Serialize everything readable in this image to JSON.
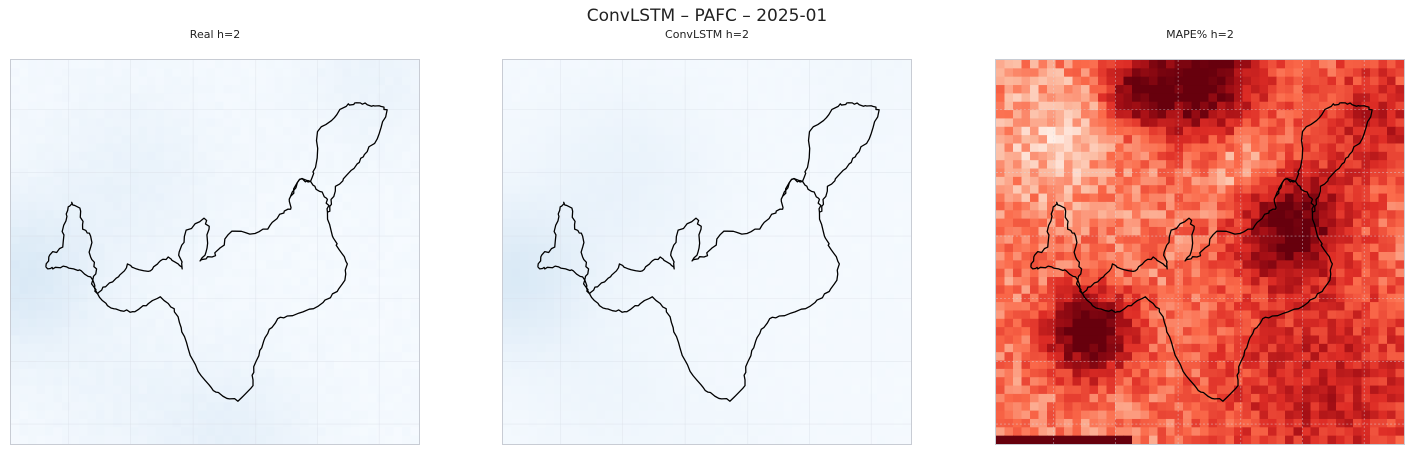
{
  "figure": {
    "title": "ConvLSTM – PAFC – 2025-01"
  },
  "colors": {
    "blues": [
      "#f7fbff",
      "#e4eff9",
      "#d4e6f4",
      "#bcd8ee"
    ],
    "reds": [
      "#fff5f0",
      "#fcbba1",
      "#fb6a4a",
      "#de2d26",
      "#a50f15",
      "#67000d"
    ],
    "outline": "#000000",
    "grid": "#d8dde6"
  },
  "chart_data": [
    {
      "type": "heatmap",
      "title": "Real h=2",
      "colormap": "Blues",
      "grid": true,
      "overlay": "region-outline",
      "intensity_pattern": "mostly very light blue, slightly darker patches on the left edge and bottom"
    },
    {
      "type": "heatmap",
      "title": "ConvLSTM h=2",
      "colormap": "Blues",
      "grid": true,
      "overlay": "region-outline",
      "intensity_pattern": "smooth very light blue, slightly darker band on the left edge"
    },
    {
      "type": "heatmap",
      "title": "MAPE% h=2",
      "colormap": "Reds",
      "grid": true,
      "overlay": "region-outline",
      "intensity_pattern": "mixed light-to-dark red; darkest at top-center, center-right and lower-left"
    }
  ]
}
